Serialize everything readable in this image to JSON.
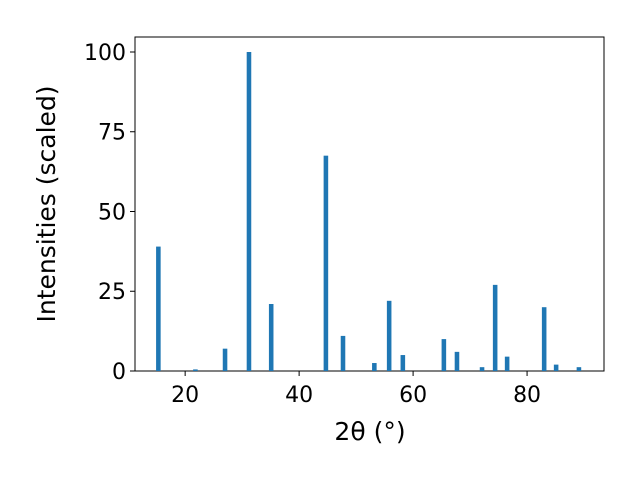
{
  "chart_data": {
    "type": "bar",
    "xlabel": "2θ (°)",
    "ylabel": "Intensities (scaled)",
    "x": [
      15.3,
      21.8,
      27.0,
      31.2,
      35.1,
      44.7,
      47.7,
      53.2,
      55.8,
      58.2,
      65.4,
      67.7,
      72.1,
      74.4,
      76.5,
      83.0,
      85.1,
      89.1
    ],
    "values": [
      39,
      0.5,
      7,
      100,
      21,
      67.5,
      11,
      2.5,
      22,
      5,
      10,
      6,
      1.2,
      27,
      4.5,
      20,
      2,
      1.2
    ],
    "color": "#1f77b4",
    "xlim": [
      11.2,
      93.5
    ],
    "xticks": [
      20,
      40,
      60,
      80
    ],
    "ylim": [
      0,
      104.7
    ],
    "yticks": [
      0,
      25,
      50,
      75,
      100
    ]
  }
}
